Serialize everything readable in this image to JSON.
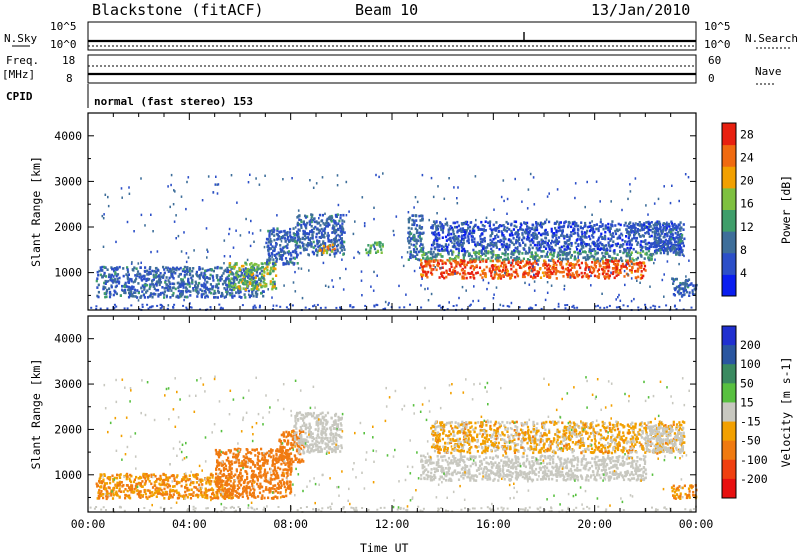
{
  "header": {
    "station": "Blackstone (fitACF)",
    "beam": "Beam 10",
    "date": "13/Jan/2010"
  },
  "aux_panels": {
    "nsky_label": "N.Sky",
    "nsearch_label": "N.Search",
    "noise_tick_top": "10^5",
    "noise_tick_bottom": "10^0",
    "freq_label": "Freq.",
    "freq_unit": "[MHz]",
    "freq_ticks": [
      "18",
      "8"
    ],
    "nave_label": "Nave",
    "nave_ticks": [
      "60",
      "0"
    ],
    "cpid_label": "CPID",
    "cpid_text": "normal (fast stereo) 153"
  },
  "chart_data": [
    {
      "type": "heatmap",
      "name": "power",
      "ylabel": "Slant Range [km]",
      "xlabel": "",
      "x_ticks": [
        "00:00",
        "04:00",
        "08:00",
        "12:00",
        "16:00",
        "20:00",
        "00:00"
      ],
      "y_ticks": [
        1000,
        2000,
        3000,
        4000
      ],
      "xlim_hours": [
        0,
        24
      ],
      "ylim_km": [
        180,
        4500
      ],
      "colorbar": {
        "label": "Power [dB]",
        "ticks": [
          4,
          8,
          12,
          16,
          20,
          24,
          28
        ],
        "range": [
          0,
          30
        ],
        "colors": [
          "#0a1ef0",
          "#2c4fc8",
          "#3e6e9a",
          "#3f9e6a",
          "#7ec040",
          "#f2a000",
          "#f06a10",
          "#e82010"
        ]
      },
      "regions": [
        {
          "x": [
            0.3,
            6.9
          ],
          "y": [
            480,
            1150
          ],
          "value": 8
        },
        {
          "x": [
            5.5,
            7.4
          ],
          "y": [
            650,
            1250
          ],
          "value": 16
        },
        {
          "x": [
            7.0,
            8.3
          ],
          "y": [
            1200,
            2000
          ],
          "value": 8
        },
        {
          "x": [
            8.2,
            10.1
          ],
          "y": [
            1400,
            2300
          ],
          "value": 8
        },
        {
          "x": [
            9.1,
            9.7
          ],
          "y": [
            1450,
            1650
          ],
          "value": 20
        },
        {
          "x": [
            10.9,
            11.6
          ],
          "y": [
            1450,
            1700
          ],
          "value": 14
        },
        {
          "x": [
            12.6,
            13.2
          ],
          "y": [
            1300,
            2300
          ],
          "value": 8
        },
        {
          "x": [
            13.1,
            22.3
          ],
          "y": [
            1280,
            1500
          ],
          "value": 12
        },
        {
          "x": [
            13.1,
            22.0
          ],
          "y": [
            900,
            1300
          ],
          "value": 26
        },
        {
          "x": [
            13.5,
            23.4
          ],
          "y": [
            1500,
            2150
          ],
          "value": 6
        },
        {
          "x": [
            22.3,
            23.5
          ],
          "y": [
            1400,
            2100
          ],
          "value": 8
        },
        {
          "x": [
            23.0,
            24.0
          ],
          "y": [
            500,
            900
          ],
          "value": 8
        }
      ]
    },
    {
      "type": "heatmap",
      "name": "velocity",
      "ylabel": "Slant Range [km]",
      "xlabel": "Time UT",
      "x_ticks": [
        "00:00",
        "04:00",
        "08:00",
        "12:00",
        "16:00",
        "20:00",
        "00:00"
      ],
      "y_ticks": [
        1000,
        2000,
        3000,
        4000
      ],
      "xlim_hours": [
        0,
        24
      ],
      "ylim_km": [
        180,
        4500
      ],
      "colorbar": {
        "label": "Velocity [m s-1]",
        "ticks": [
          200,
          100,
          50,
          15,
          -15,
          -50,
          -100,
          -200
        ],
        "colors": [
          "#2030d0",
          "#2a56a0",
          "#3a8a60",
          "#58c040",
          "#c8c8c0",
          "#f2a000",
          "#f07a10",
          "#f04010",
          "#e81010"
        ]
      },
      "regions": [
        {
          "x": [
            0.3,
            5.8
          ],
          "y": [
            500,
            1050
          ],
          "value": -30
        },
        {
          "x": [
            5.0,
            8.0
          ],
          "y": [
            500,
            1600
          ],
          "value": -60
        },
        {
          "x": [
            7.5,
            8.5
          ],
          "y": [
            1300,
            2000
          ],
          "value": -60
        },
        {
          "x": [
            8.1,
            10.0
          ],
          "y": [
            1500,
            2400
          ],
          "value": 0
        },
        {
          "x": [
            13.1,
            22.0
          ],
          "y": [
            900,
            1450
          ],
          "value": 0
        },
        {
          "x": [
            13.5,
            23.5
          ],
          "y": [
            1500,
            2200
          ],
          "value": -20
        },
        {
          "x": [
            22.0,
            23.5
          ],
          "y": [
            1500,
            2100
          ],
          "value": 0
        },
        {
          "x": [
            23.0,
            24.0
          ],
          "y": [
            500,
            800
          ],
          "value": -30
        }
      ]
    }
  ]
}
